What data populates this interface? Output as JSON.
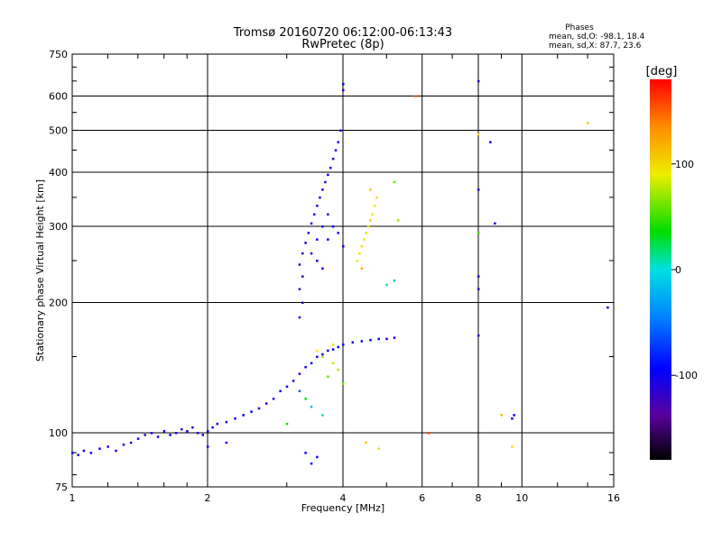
{
  "chart_data": {
    "type": "scatter",
    "title": "Tromsø 20160720 06:12:00-06:13:43",
    "subtitle": "RwPretec (8p)",
    "xlabel": "Frequency [MHz]",
    "ylabel": "Stationary phase Virtual Height [km]",
    "x_scale": "log",
    "y_scale": "log",
    "xlim": [
      1,
      16
    ],
    "ylim": [
      75,
      750
    ],
    "x_ticks": [
      1,
      2,
      4,
      6,
      8,
      10,
      16
    ],
    "x_tick_labels": [
      "1",
      "2",
      "4",
      "6",
      "8",
      "10",
      "16"
    ],
    "y_ticks": [
      75,
      100,
      200,
      300,
      400,
      500,
      600,
      750
    ],
    "y_tick_labels": [
      "75",
      "100",
      "200",
      "300",
      "400",
      "500",
      "600",
      "750"
    ],
    "grid": true,
    "legend": {
      "title": "Phases",
      "lines": [
        "mean, sd,O: -98.1, 18.4",
        "mean, sd,X:  87.7, 23.6"
      ],
      "placement": "top-right"
    },
    "colorbar": {
      "label": "[deg]",
      "range": [
        -180,
        180
      ],
      "ticks": [
        100,
        0,
        -100
      ],
      "tick_labels": [
        "100",
        "0",
        "-100"
      ],
      "colormap": "rainbow (black-purple-blue-cyan-green-yellow-red)"
    },
    "series": [
      {
        "mode": "O",
        "phase_mean": -98.1,
        "points": [
          [
            1.0,
            90,
            -105
          ],
          [
            1.03,
            89,
            -100
          ],
          [
            1.06,
            91,
            -110
          ],
          [
            1.1,
            90,
            -95
          ],
          [
            1.15,
            92,
            -100
          ],
          [
            1.2,
            93,
            -105
          ],
          [
            1.25,
            91,
            -100
          ],
          [
            1.3,
            94,
            -98
          ],
          [
            1.35,
            95,
            -110
          ],
          [
            1.4,
            97,
            -100
          ],
          [
            1.45,
            99,
            -120
          ],
          [
            1.5,
            100,
            -100
          ],
          [
            1.55,
            98,
            -105
          ],
          [
            1.6,
            101,
            -100
          ],
          [
            1.65,
            99,
            -95
          ],
          [
            1.7,
            100,
            -100
          ],
          [
            1.75,
            102,
            -110
          ],
          [
            1.8,
            101,
            -100
          ],
          [
            1.85,
            103,
            -100
          ],
          [
            1.9,
            100,
            -105
          ],
          [
            1.95,
            99,
            -100
          ],
          [
            2.0,
            101,
            -95
          ],
          [
            2.05,
            103,
            -100
          ],
          [
            2.1,
            105,
            -100
          ],
          [
            2.2,
            106,
            -105
          ],
          [
            2.3,
            108,
            -100
          ],
          [
            2.4,
            110,
            -100
          ],
          [
            2.5,
            112,
            -95
          ],
          [
            2.6,
            114,
            -100
          ],
          [
            2.7,
            117,
            -105
          ],
          [
            2.8,
            120,
            -100
          ],
          [
            2.9,
            125,
            -100
          ],
          [
            3.0,
            128,
            -100
          ],
          [
            3.1,
            132,
            -110
          ],
          [
            3.2,
            137,
            -100
          ],
          [
            3.3,
            142,
            -100
          ],
          [
            3.4,
            145,
            -95
          ],
          [
            3.5,
            150,
            -100
          ],
          [
            3.6,
            152,
            -105
          ],
          [
            3.7,
            155,
            -100
          ],
          [
            3.8,
            156,
            -100
          ],
          [
            3.9,
            158,
            -95
          ],
          [
            4.0,
            160,
            -100
          ],
          [
            4.2,
            162,
            -100
          ],
          [
            4.4,
            163,
            -105
          ],
          [
            4.6,
            164,
            -100
          ],
          [
            4.8,
            165,
            -100
          ],
          [
            5.0,
            165,
            -100
          ],
          [
            5.2,
            166,
            -105
          ],
          [
            3.2,
            185,
            -110
          ],
          [
            3.25,
            200,
            -120
          ],
          [
            3.2,
            215,
            -115
          ],
          [
            3.25,
            230,
            -125
          ],
          [
            3.2,
            245,
            -120
          ],
          [
            3.25,
            260,
            -115
          ],
          [
            3.3,
            275,
            -110
          ],
          [
            3.35,
            290,
            -105
          ],
          [
            3.4,
            305,
            -110
          ],
          [
            3.45,
            320,
            -105
          ],
          [
            3.5,
            335,
            -110
          ],
          [
            3.55,
            350,
            -105
          ],
          [
            3.6,
            365,
            -100
          ],
          [
            3.65,
            380,
            -110
          ],
          [
            3.7,
            395,
            -105
          ],
          [
            3.75,
            410,
            -100
          ],
          [
            3.8,
            430,
            -110
          ],
          [
            3.85,
            450,
            -105
          ],
          [
            3.9,
            470,
            -100
          ],
          [
            3.95,
            500,
            -100
          ],
          [
            4.0,
            620,
            -100
          ],
          [
            4.0,
            640,
            -95
          ],
          [
            3.4,
            260,
            -100
          ],
          [
            3.5,
            280,
            -105
          ],
          [
            3.6,
            300,
            -100
          ],
          [
            3.7,
            280,
            -95
          ],
          [
            3.8,
            300,
            -100
          ],
          [
            3.9,
            290,
            -105
          ],
          [
            4.0,
            270,
            -100
          ],
          [
            3.6,
            240,
            -105
          ],
          [
            3.5,
            250,
            -100
          ],
          [
            3.7,
            320,
            -110
          ],
          [
            8.0,
            650,
            -100
          ],
          [
            8.5,
            470,
            -100
          ],
          [
            8.7,
            305,
            -105
          ],
          [
            8.0,
            365,
            -100
          ],
          [
            8.0,
            230,
            -105
          ],
          [
            8.0,
            215,
            -110
          ],
          [
            8.0,
            168,
            -120
          ],
          [
            9.5,
            108,
            -105
          ],
          [
            9.6,
            110,
            -100
          ],
          [
            15.5,
            195,
            -95
          ],
          [
            3.4,
            85,
            -100
          ],
          [
            3.3,
            90,
            -95
          ],
          [
            3.5,
            88,
            -100
          ],
          [
            2.0,
            93,
            -105
          ],
          [
            2.2,
            95,
            -100
          ]
        ]
      },
      {
        "mode": "X",
        "phase_mean": 87.7,
        "points": [
          [
            4.3,
            250,
            90
          ],
          [
            4.35,
            260,
            95
          ],
          [
            4.4,
            270,
            100
          ],
          [
            4.45,
            280,
            90
          ],
          [
            4.5,
            290,
            85
          ],
          [
            4.55,
            300,
            95
          ],
          [
            4.6,
            310,
            100
          ],
          [
            4.65,
            320,
            90
          ],
          [
            4.7,
            335,
            95
          ],
          [
            4.75,
            350,
            100
          ],
          [
            4.6,
            365,
            105
          ],
          [
            4.4,
            240,
            120
          ],
          [
            5.2,
            380,
            60
          ],
          [
            5.3,
            310,
            70
          ],
          [
            3.6,
            150,
            70
          ],
          [
            3.8,
            145,
            80
          ],
          [
            3.9,
            140,
            75
          ],
          [
            3.7,
            135,
            60
          ],
          [
            4.0,
            130,
            65
          ],
          [
            3.5,
            155,
            90
          ],
          [
            3.8,
            160,
            85
          ],
          [
            3.3,
            120,
            30
          ],
          [
            3.4,
            115,
            -20
          ],
          [
            3.6,
            110,
            10
          ],
          [
            3.2,
            125,
            -60
          ],
          [
            3.0,
            105,
            40
          ],
          [
            5.8,
            600,
            150
          ],
          [
            6.2,
            100,
            160
          ],
          [
            8.0,
            490,
            100
          ],
          [
            8.0,
            290,
            50
          ],
          [
            9.0,
            110,
            110
          ],
          [
            9.5,
            93,
            100
          ],
          [
            14.0,
            520,
            110
          ],
          [
            4.5,
            95,
            110
          ],
          [
            4.8,
            92,
            100
          ],
          [
            5.2,
            225,
            -20
          ],
          [
            5.0,
            220,
            10
          ]
        ]
      }
    ]
  }
}
